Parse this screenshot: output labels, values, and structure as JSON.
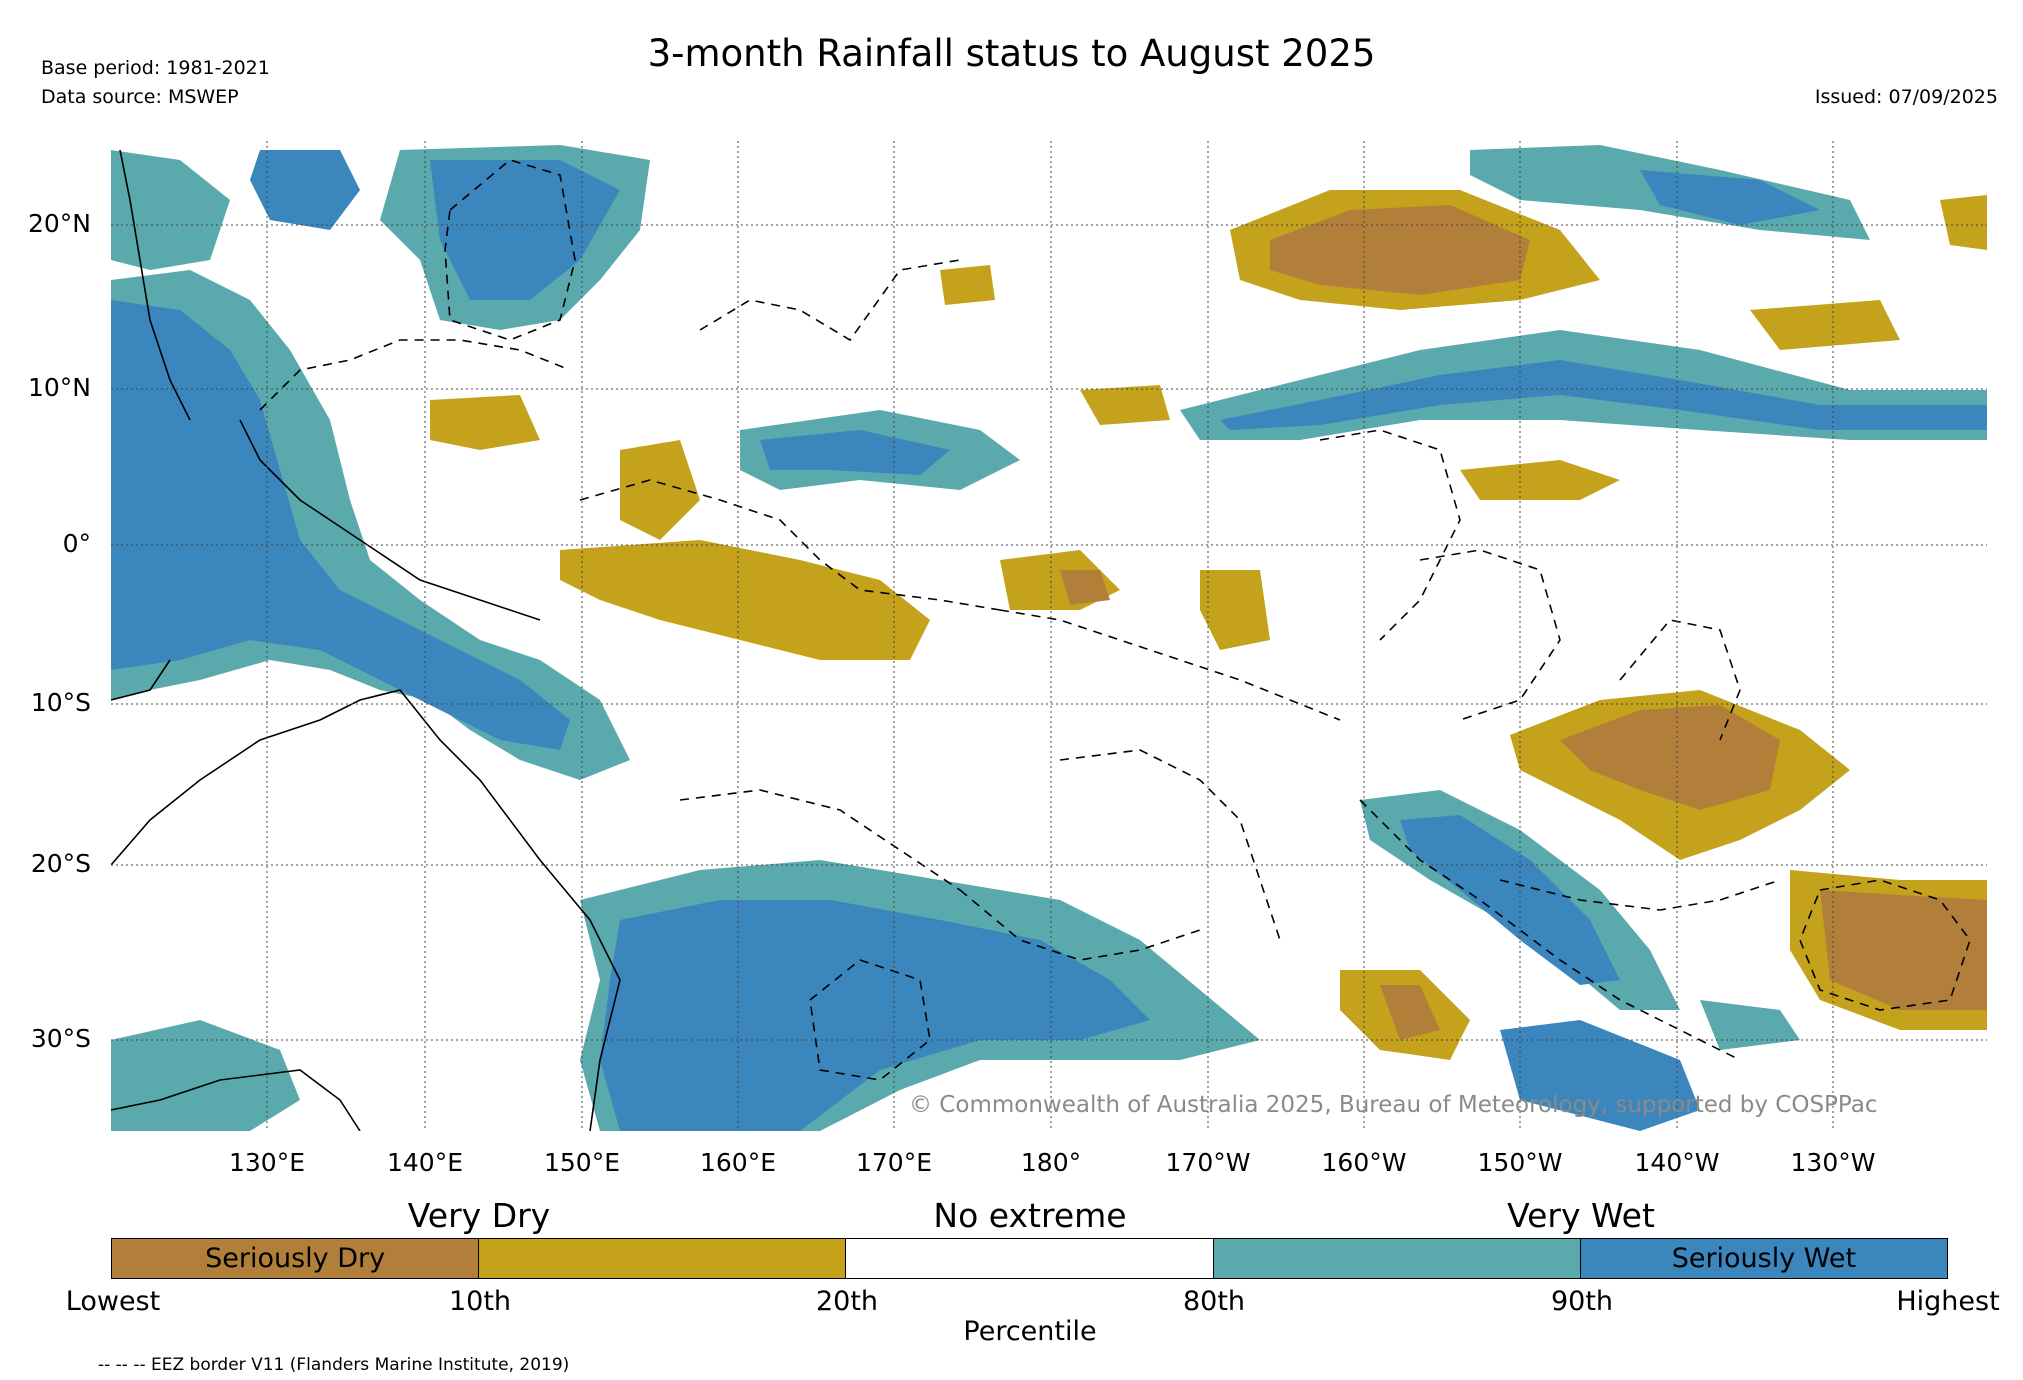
{
  "header": {
    "title": "3-month Rainfall status to August 2025",
    "base_period": "Base period: 1981-2021",
    "data_source": "Data source: MSWEP",
    "issued": "Issued: 07/09/2025"
  },
  "axes": {
    "lat_labels": [
      "20°N",
      "10°N",
      "0°",
      "10°S",
      "20°S",
      "30°S"
    ],
    "lon_labels": [
      "130°E",
      "140°E",
      "150°E",
      "160°E",
      "170°E",
      "180°",
      "170°W",
      "160°W",
      "150°W",
      "140°W",
      "130°W"
    ]
  },
  "watermark": "© Commonwealth of Australia 2025, Bureau of Meteorology, supported by COSPPac",
  "legend": {
    "groups": [
      "Very Dry",
      "No extreme",
      "Very Wet"
    ],
    "classes": [
      {
        "label": "Seriously Dry",
        "color": "#b27f3b"
      },
      {
        "label": "",
        "color": "#c4a21b"
      },
      {
        "label": "",
        "color": "#ffffff"
      },
      {
        "label": "",
        "color": "#5aa9ad"
      },
      {
        "label": "Seriously Wet",
        "color": "#3a86bd"
      }
    ],
    "percentiles": [
      "Lowest",
      "10th",
      "20th",
      "80th",
      "90th",
      "Highest"
    ],
    "axis_title": "Percentile"
  },
  "footnote": "-- -- -- EEZ border V11 (Flanders Marine Institute, 2019)",
  "colors": {
    "seriously_dry": "#b27f3b",
    "very_dry": "#c4a21b",
    "very_wet": "#5aa9ad",
    "seriously_wet": "#3a86bd"
  }
}
